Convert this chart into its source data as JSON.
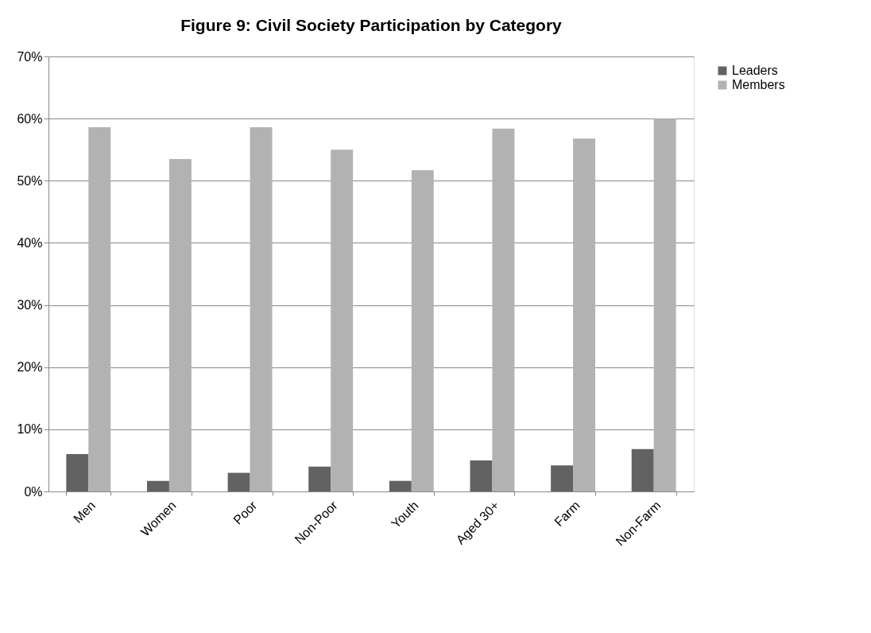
{
  "chart_data": {
    "type": "bar",
    "title": "Figure 9: Civil Society Participation by Category",
    "categories": [
      "Men",
      "Women",
      "Poor",
      "Non-Poor",
      "Youth",
      "Aged 30+",
      "Farm",
      "Non-Farm"
    ],
    "series": [
      {
        "name": "Leaders",
        "color": "#626262",
        "values": [
          6.0,
          1.7,
          3.0,
          4.0,
          1.7,
          5.0,
          4.2,
          6.8
        ]
      },
      {
        "name": "Members",
        "color": "#b2b2b2",
        "values": [
          58.6,
          53.5,
          58.6,
          55.0,
          51.7,
          58.4,
          56.8,
          60.0
        ]
      }
    ],
    "ylim": [
      0,
      70
    ],
    "yticks": [
      {
        "value": 0,
        "label": "0%"
      },
      {
        "value": 10,
        "label": "10%"
      },
      {
        "value": 20,
        "label": "20%"
      },
      {
        "value": 30,
        "label": "30%"
      },
      {
        "value": 40,
        "label": "40%"
      },
      {
        "value": 50,
        "label": "50%"
      },
      {
        "value": 60,
        "label": "60%"
      },
      {
        "value": 70,
        "label": "70%"
      }
    ],
    "grid": "y",
    "legend": "right"
  }
}
